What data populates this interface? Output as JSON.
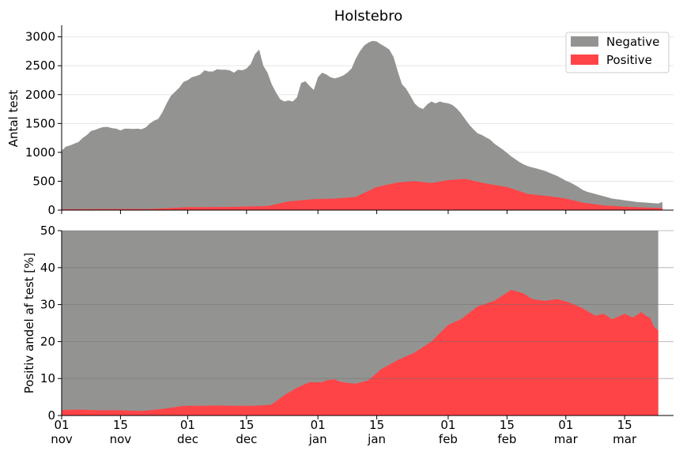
{
  "chart_data": [
    {
      "type": "area",
      "title": "Holstebro",
      "ylabel": "Antal test",
      "ylim": [
        0,
        3200
      ],
      "yticks": [
        0,
        500,
        1000,
        1500,
        2000,
        2500,
        3000
      ],
      "grid": true,
      "legend_position": "top-right",
      "stacked": true,
      "x_start": "2020-11-01",
      "x_end": "2021-03-24",
      "series": [
        {
          "name": "Negative",
          "color": "#939492",
          "total_points": [
            [
              "2020-11-01",
              1030
            ],
            [
              "2020-11-02",
              1100
            ],
            [
              "2020-11-03",
              1120
            ],
            [
              "2020-11-04",
              1150
            ],
            [
              "2020-11-05",
              1180
            ],
            [
              "2020-11-06",
              1250
            ],
            [
              "2020-11-07",
              1300
            ],
            [
              "2020-11-08",
              1370
            ],
            [
              "2020-11-09",
              1390
            ],
            [
              "2020-11-10",
              1420
            ],
            [
              "2020-11-11",
              1440
            ],
            [
              "2020-11-12",
              1440
            ],
            [
              "2020-11-13",
              1420
            ],
            [
              "2020-11-14",
              1410
            ],
            [
              "2020-11-15",
              1380
            ],
            [
              "2020-11-16",
              1410
            ],
            [
              "2020-11-17",
              1410
            ],
            [
              "2020-11-18",
              1405
            ],
            [
              "2020-11-19",
              1410
            ],
            [
              "2020-11-20",
              1400
            ],
            [
              "2020-11-21",
              1430
            ],
            [
              "2020-11-22",
              1500
            ],
            [
              "2020-11-23",
              1550
            ],
            [
              "2020-11-24",
              1580
            ],
            [
              "2020-11-25",
              1700
            ],
            [
              "2020-11-26",
              1850
            ],
            [
              "2020-11-27",
              1980
            ],
            [
              "2020-11-28",
              2050
            ],
            [
              "2020-11-29",
              2120
            ],
            [
              "2020-11-30",
              2220
            ],
            [
              "2020-12-01",
              2250
            ],
            [
              "2020-12-02",
              2300
            ],
            [
              "2020-12-03",
              2320
            ],
            [
              "2020-12-04",
              2350
            ],
            [
              "2020-12-05",
              2420
            ],
            [
              "2020-12-06",
              2400
            ],
            [
              "2020-12-07",
              2400
            ],
            [
              "2020-12-08",
              2440
            ],
            [
              "2020-12-09",
              2430
            ],
            [
              "2020-12-10",
              2430
            ],
            [
              "2020-12-11",
              2420
            ],
            [
              "2020-12-12",
              2380
            ],
            [
              "2020-12-13",
              2430
            ],
            [
              "2020-12-14",
              2420
            ],
            [
              "2020-12-15",
              2450
            ],
            [
              "2020-12-16",
              2530
            ],
            [
              "2020-12-17",
              2700
            ],
            [
              "2020-12-18",
              2780
            ],
            [
              "2020-12-19",
              2500
            ],
            [
              "2020-12-20",
              2380
            ],
            [
              "2020-12-21",
              2180
            ],
            [
              "2020-12-22",
              2040
            ],
            [
              "2020-12-23",
              1920
            ],
            [
              "2020-12-24",
              1880
            ],
            [
              "2020-12-25",
              1900
            ],
            [
              "2020-12-26",
              1880
            ],
            [
              "2020-12-27",
              1950
            ],
            [
              "2020-12-28",
              2200
            ],
            [
              "2020-12-29",
              2230
            ],
            [
              "2020-12-30",
              2150
            ],
            [
              "2020-12-31",
              2080
            ],
            [
              "2021-01-01",
              2300
            ],
            [
              "2021-01-02",
              2380
            ],
            [
              "2021-01-03",
              2350
            ],
            [
              "2021-01-04",
              2300
            ],
            [
              "2021-01-05",
              2280
            ],
            [
              "2021-01-06",
              2300
            ],
            [
              "2021-01-07",
              2330
            ],
            [
              "2021-01-08",
              2380
            ],
            [
              "2021-01-09",
              2450
            ],
            [
              "2021-01-10",
              2620
            ],
            [
              "2021-01-11",
              2750
            ],
            [
              "2021-01-12",
              2850
            ],
            [
              "2021-01-13",
              2900
            ],
            [
              "2021-01-14",
              2930
            ],
            [
              "2021-01-15",
              2920
            ],
            [
              "2021-01-16",
              2870
            ],
            [
              "2021-01-17",
              2830
            ],
            [
              "2021-01-18",
              2780
            ],
            [
              "2021-01-19",
              2650
            ],
            [
              "2021-01-20",
              2400
            ],
            [
              "2021-01-21",
              2180
            ],
            [
              "2021-01-22",
              2100
            ],
            [
              "2021-01-23",
              1980
            ],
            [
              "2021-01-24",
              1850
            ],
            [
              "2021-01-25",
              1780
            ],
            [
              "2021-01-26",
              1750
            ],
            [
              "2021-01-27",
              1830
            ],
            [
              "2021-01-28",
              1880
            ],
            [
              "2021-01-29",
              1850
            ],
            [
              "2021-01-30",
              1880
            ],
            [
              "2021-01-31",
              1860
            ],
            [
              "2021-02-01",
              1850
            ],
            [
              "2021-02-02",
              1820
            ],
            [
              "2021-02-03",
              1760
            ],
            [
              "2021-02-04",
              1680
            ],
            [
              "2021-02-05",
              1580
            ],
            [
              "2021-02-06",
              1480
            ],
            [
              "2021-02-07",
              1400
            ],
            [
              "2021-02-08",
              1330
            ],
            [
              "2021-02-09",
              1300
            ],
            [
              "2021-02-10",
              1260
            ],
            [
              "2021-02-11",
              1220
            ],
            [
              "2021-02-12",
              1150
            ],
            [
              "2021-02-13",
              1100
            ],
            [
              "2021-02-14",
              1050
            ],
            [
              "2021-02-15",
              990
            ],
            [
              "2021-02-16",
              930
            ],
            [
              "2021-02-17",
              880
            ],
            [
              "2021-02-18",
              830
            ],
            [
              "2021-02-19",
              790
            ],
            [
              "2021-02-20",
              760
            ],
            [
              "2021-02-21",
              740
            ],
            [
              "2021-02-22",
              720
            ],
            [
              "2021-02-23",
              700
            ],
            [
              "2021-02-24",
              680
            ],
            [
              "2021-02-25",
              650
            ],
            [
              "2021-02-26",
              620
            ],
            [
              "2021-02-27",
              590
            ],
            [
              "2021-02-28",
              550
            ],
            [
              "2021-03-01",
              510
            ],
            [
              "2021-03-02",
              480
            ],
            [
              "2021-03-03",
              440
            ],
            [
              "2021-03-04",
              400
            ],
            [
              "2021-03-05",
              350
            ],
            [
              "2021-03-06",
              320
            ],
            [
              "2021-03-07",
              300
            ],
            [
              "2021-03-08",
              280
            ],
            [
              "2021-03-09",
              260
            ],
            [
              "2021-03-10",
              240
            ],
            [
              "2021-03-11",
              220
            ],
            [
              "2021-03-12",
              200
            ],
            [
              "2021-03-13",
              190
            ],
            [
              "2021-03-14",
              180
            ],
            [
              "2021-03-15",
              170
            ],
            [
              "2021-03-16",
              160
            ],
            [
              "2021-03-17",
              150
            ],
            [
              "2021-03-18",
              140
            ],
            [
              "2021-03-19",
              135
            ],
            [
              "2021-03-20",
              130
            ],
            [
              "2021-03-21",
              125
            ],
            [
              "2021-03-22",
              120
            ],
            [
              "2021-03-23",
              115
            ],
            [
              "2021-03-24",
              140
            ]
          ]
        },
        {
          "name": "Positive",
          "color": "#ff4447",
          "points": [
            [
              "2020-11-01",
              15
            ],
            [
              "2020-11-15",
              20
            ],
            [
              "2020-11-22",
              20
            ],
            [
              "2020-11-25",
              30
            ],
            [
              "2020-12-01",
              50
            ],
            [
              "2020-12-10",
              55
            ],
            [
              "2020-12-20",
              70
            ],
            [
              "2020-12-25",
              150
            ],
            [
              "2020-12-31",
              190
            ],
            [
              "2021-01-05",
              200
            ],
            [
              "2021-01-10",
              230
            ],
            [
              "2021-01-15",
              400
            ],
            [
              "2021-01-20",
              480
            ],
            [
              "2021-01-24",
              500
            ],
            [
              "2021-01-28",
              470
            ],
            [
              "2021-02-01",
              520
            ],
            [
              "2021-02-05",
              540
            ],
            [
              "2021-02-10",
              460
            ],
            [
              "2021-02-15",
              400
            ],
            [
              "2021-02-20",
              280
            ],
            [
              "2021-02-25",
              240
            ],
            [
              "2021-03-01",
              200
            ],
            [
              "2021-03-05",
              130
            ],
            [
              "2021-03-10",
              80
            ],
            [
              "2021-03-15",
              60
            ],
            [
              "2021-03-20",
              45
            ],
            [
              "2021-03-24",
              35
            ]
          ]
        }
      ]
    },
    {
      "type": "area",
      "ylabel": "Positiv andel af test [%]",
      "ylim": [
        0,
        50
      ],
      "yticks": [
        0,
        10,
        20,
        30,
        40,
        50
      ],
      "grid": true,
      "background_color": "#939492",
      "series": [
        {
          "name": "Positive",
          "color": "#ff4447",
          "points": [
            [
              "2020-11-01",
              1.5
            ],
            [
              "2020-11-05",
              1.6
            ],
            [
              "2020-11-10",
              1.4
            ],
            [
              "2020-11-15",
              1.4
            ],
            [
              "2020-11-20",
              1.2
            ],
            [
              "2020-11-25",
              1.8
            ],
            [
              "2020-11-30",
              2.6
            ],
            [
              "2020-12-03",
              2.6
            ],
            [
              "2020-12-08",
              2.7
            ],
            [
              "2020-12-13",
              2.6
            ],
            [
              "2020-12-16",
              2.6
            ],
            [
              "2020-12-20",
              2.8
            ],
            [
              "2020-12-21",
              3.0
            ],
            [
              "2020-12-24",
              5.5
            ],
            [
              "2020-12-27",
              7.5
            ],
            [
              "2020-12-30",
              9.0
            ],
            [
              "2021-01-02",
              9.0
            ],
            [
              "2021-01-03",
              9.5
            ],
            [
              "2021-01-05",
              9.8
            ],
            [
              "2021-01-06",
              9.2
            ],
            [
              "2021-01-08",
              8.8
            ],
            [
              "2021-01-10",
              8.6
            ],
            [
              "2021-01-13",
              9.5
            ],
            [
              "2021-01-16",
              12.5
            ],
            [
              "2021-01-20",
              15.0
            ],
            [
              "2021-01-24",
              17.0
            ],
            [
              "2021-01-28",
              20.0
            ],
            [
              "2021-02-01",
              24.5
            ],
            [
              "2021-02-04",
              26.0
            ],
            [
              "2021-02-08",
              29.5
            ],
            [
              "2021-02-12",
              31.0
            ],
            [
              "2021-02-16",
              34.0
            ],
            [
              "2021-02-19",
              33.0
            ],
            [
              "2021-02-21",
              31.5
            ],
            [
              "2021-02-24",
              31.0
            ],
            [
              "2021-02-27",
              31.5
            ],
            [
              "2021-03-02",
              30.5
            ],
            [
              "2021-03-05",
              29.0
            ],
            [
              "2021-03-08",
              27.0
            ],
            [
              "2021-03-10",
              27.5
            ],
            [
              "2021-03-12",
              26.0
            ],
            [
              "2021-03-15",
              27.5
            ],
            [
              "2021-03-17",
              26.5
            ],
            [
              "2021-03-19",
              28.0
            ],
            [
              "2021-03-20",
              27.0
            ],
            [
              "2021-03-21",
              26.5
            ],
            [
              "2021-03-22",
              24.0
            ],
            [
              "2021-03-23",
              23.0
            ]
          ]
        }
      ]
    }
  ],
  "x_axis": {
    "ticks": [
      {
        "date": "2020-11-01",
        "day": "01",
        "month": "nov"
      },
      {
        "date": "2020-11-15",
        "day": "15",
        "month": "nov"
      },
      {
        "date": "2020-12-01",
        "day": "01",
        "month": "dec"
      },
      {
        "date": "2020-12-15",
        "day": "15",
        "month": "dec"
      },
      {
        "date": "2021-01-01",
        "day": "01",
        "month": "jan"
      },
      {
        "date": "2021-01-15",
        "day": "15",
        "month": "jan"
      },
      {
        "date": "2021-02-01",
        "day": "01",
        "month": "feb"
      },
      {
        "date": "2021-02-15",
        "day": "15",
        "month": "feb"
      },
      {
        "date": "2021-03-01",
        "day": "01",
        "month": "mar"
      },
      {
        "date": "2021-03-15",
        "day": "15",
        "month": "mar"
      }
    ]
  }
}
